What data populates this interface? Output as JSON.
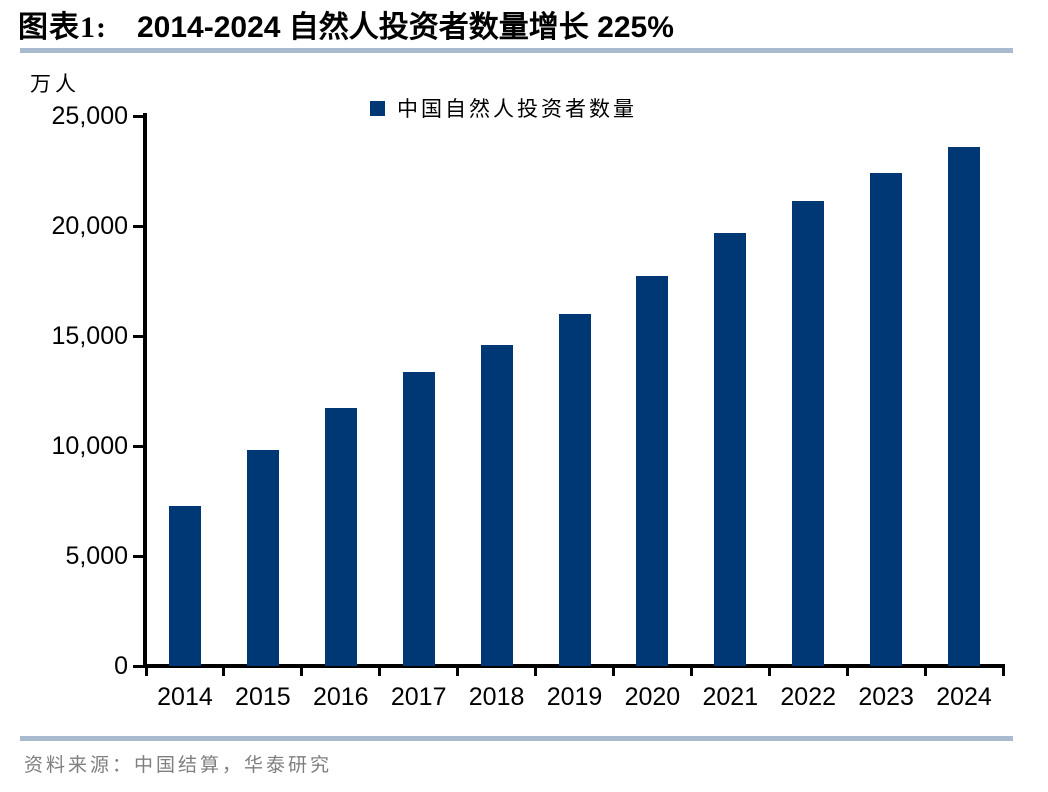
{
  "title": {
    "label": "图表1:",
    "text": "2014-2024 自然人投资者数量增长 225%"
  },
  "chart": {
    "unit_label": "万人"
  },
  "legend": {
    "label": "中国自然人投资者数量"
  },
  "source": {
    "text": "资料来源：中国结算，华泰研究"
  },
  "colors": {
    "bar": "#003876",
    "rule": "#a7bace",
    "axis": "#000000",
    "source_text": "#7f7f7f",
    "title_text": "#000000"
  },
  "chart_data": {
    "type": "bar",
    "title": "2014-2024 自然人投资者数量增长 225%",
    "unit": "万人",
    "categories": [
      "2014",
      "2015",
      "2016",
      "2017",
      "2018",
      "2019",
      "2020",
      "2021",
      "2022",
      "2023",
      "2024"
    ],
    "series": [
      {
        "name": "中国自然人投资者数量",
        "values": [
          7250,
          9820,
          11740,
          13380,
          14590,
          15990,
          17740,
          19670,
          21150,
          22400,
          23600
        ]
      }
    ],
    "ylabel": "万人",
    "xlabel": "",
    "ylim": [
      0,
      25000
    ],
    "yticks": [
      0,
      5000,
      10000,
      15000,
      20000,
      25000
    ],
    "ytick_labels": [
      "0",
      "5,000",
      "10,000",
      "15,000",
      "20,000",
      "25,000"
    ],
    "grid": false,
    "legend_position": "top-center",
    "bar_color": "#003876"
  }
}
